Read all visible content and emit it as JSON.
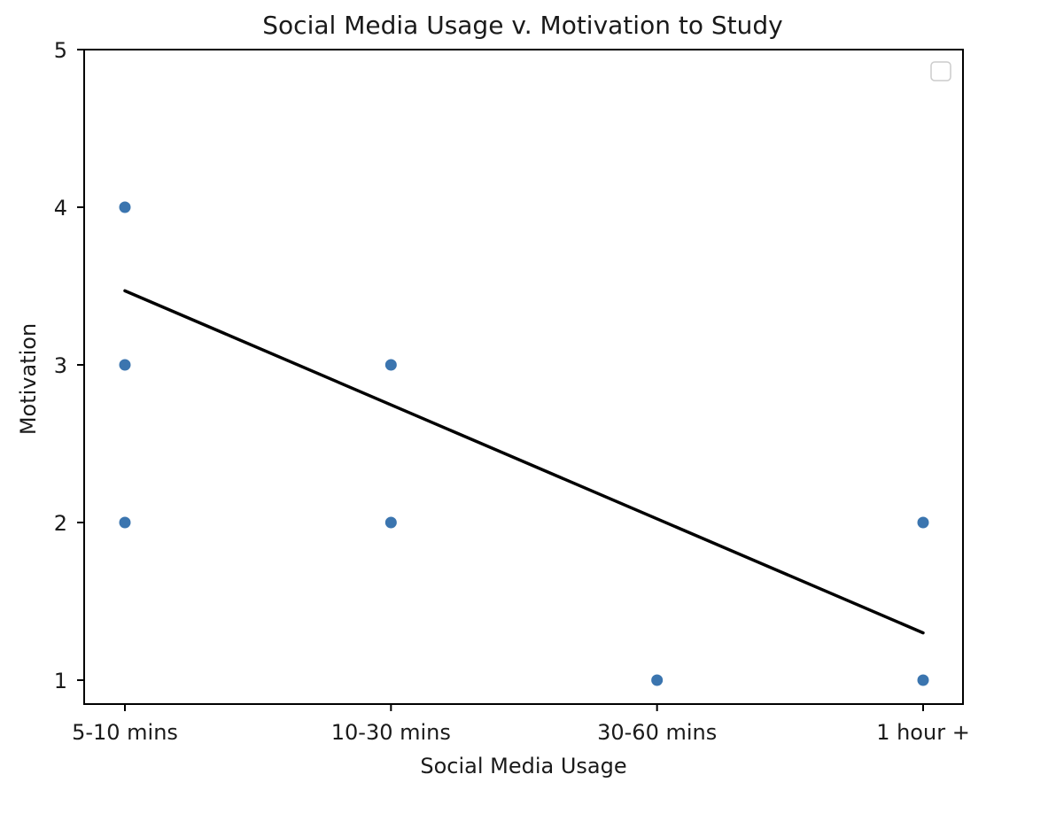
{
  "chart_data": {
    "type": "scatter",
    "title": "Social Media Usage v. Motivation to Study",
    "xlabel": "Social Media Usage",
    "ylabel": "Motivation",
    "categories": [
      "5-10 mins",
      "10-30 mins",
      "30-60 mins",
      "1 hour +"
    ],
    "y_ticks": [
      "1",
      "2",
      "3",
      "4",
      "5"
    ],
    "ylim": [
      0.85,
      5
    ],
    "grid": false,
    "legend": {
      "placement": "top-right",
      "entries": []
    },
    "points": [
      {
        "x": "5-10 mins",
        "y": 4
      },
      {
        "x": "5-10 mins",
        "y": 3
      },
      {
        "x": "5-10 mins",
        "y": 2
      },
      {
        "x": "10-30 mins",
        "y": 3
      },
      {
        "x": "10-30 mins",
        "y": 2
      },
      {
        "x": "30-60 mins",
        "y": 1
      },
      {
        "x": "1 hour +",
        "y": 2
      },
      {
        "x": "1 hour +",
        "y": 1
      }
    ],
    "trend_line": {
      "from": {
        "x": "5-10 mins",
        "y": 3.47
      },
      "to": {
        "x": "1 hour +",
        "y": 1.3
      }
    },
    "colors": {
      "points": "#3b75af",
      "trend_line": "#000000"
    }
  }
}
